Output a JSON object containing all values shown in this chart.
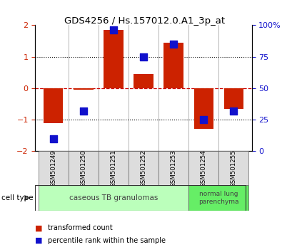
{
  "title": "GDS4256 / Hs.157012.0.A1_3p_at",
  "samples": [
    "GSM501249",
    "GSM501250",
    "GSM501251",
    "GSM501252",
    "GSM501253",
    "GSM501254",
    "GSM501255"
  ],
  "transformed_counts": [
    -1.1,
    -0.05,
    1.85,
    0.45,
    1.45,
    -1.3,
    -0.65
  ],
  "percentile_ranks": [
    10,
    32,
    96,
    75,
    85,
    25,
    32
  ],
  "ylim_left": [
    -2,
    2
  ],
  "ylim_right": [
    0,
    100
  ],
  "yticks_left": [
    -2,
    -1,
    0,
    1,
    2
  ],
  "yticks_right": [
    0,
    25,
    50,
    75,
    100
  ],
  "ytick_labels_right": [
    "0",
    "25",
    "50",
    "75",
    "100%"
  ],
  "bar_color": "#cc2200",
  "dot_color": "#1111cc",
  "zero_line_color": "#cc0000",
  "group1_label": "caseous TB granulomas",
  "group1_color": "#bbffbb",
  "group1_samples": [
    0,
    1,
    2,
    3,
    4
  ],
  "group2_label": "normal lung\nparenchyma",
  "group2_color": "#66ee66",
  "group2_samples": [
    5,
    6
  ],
  "cell_type_label": "cell type",
  "legend_bar_label": "transformed count",
  "legend_dot_label": "percentile rank within the sample",
  "background_color": "#ffffff",
  "bar_width": 0.65
}
